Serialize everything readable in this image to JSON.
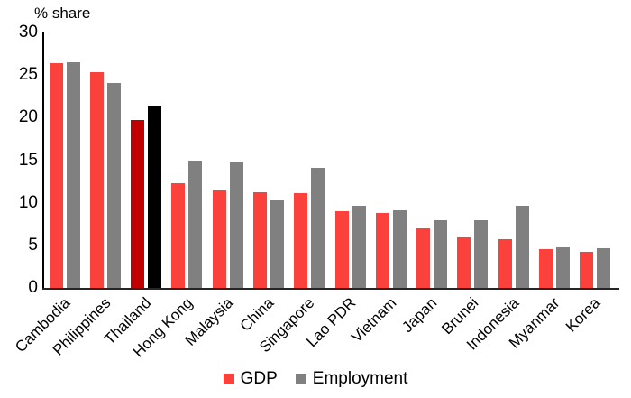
{
  "title": "% share",
  "legend": {
    "gdp_label": "GDP",
    "employment_label": "Employment"
  },
  "colors": {
    "gdp": "#FA413C",
    "employment": "#808080",
    "highlight_gdp": "#C00000",
    "highlight_employment": "#000000",
    "axis": "#000000",
    "baseline": "#262626"
  },
  "chart_data": {
    "type": "bar",
    "title": "",
    "ylabel": "% share",
    "xlabel": "",
    "ylim": [
      0,
      30
    ],
    "yticks": [
      0,
      5,
      10,
      15,
      20,
      25,
      30
    ],
    "grid": false,
    "legend_position": "bottom",
    "x_label_rotation_deg": 45,
    "categories": [
      "Cambodia",
      "Philippines",
      "Thailand",
      "Hong Kong",
      "Malaysia",
      "China",
      "Singapore",
      "Lao PDR",
      "Vietnam",
      "Japan",
      "Brunei",
      "Indonesia",
      "Myanmar",
      "Korea"
    ],
    "series": [
      {
        "name": "GDP",
        "color": "#FA413C",
        "values": [
          26.4,
          25.3,
          19.7,
          12.3,
          11.5,
          11.2,
          11.1,
          9.0,
          8.8,
          7.0,
          5.9,
          5.7,
          4.6,
          4.2
        ]
      },
      {
        "name": "Employment",
        "color": "#808080",
        "values": [
          26.5,
          24.1,
          21.4,
          14.9,
          14.7,
          10.3,
          14.1,
          9.6,
          9.1,
          8.0,
          7.9,
          9.7,
          4.8,
          4.7
        ]
      }
    ],
    "highlighted_category": "Thailand",
    "highlight_colors": {
      "GDP": "#C00000",
      "Employment": "#000000"
    }
  }
}
